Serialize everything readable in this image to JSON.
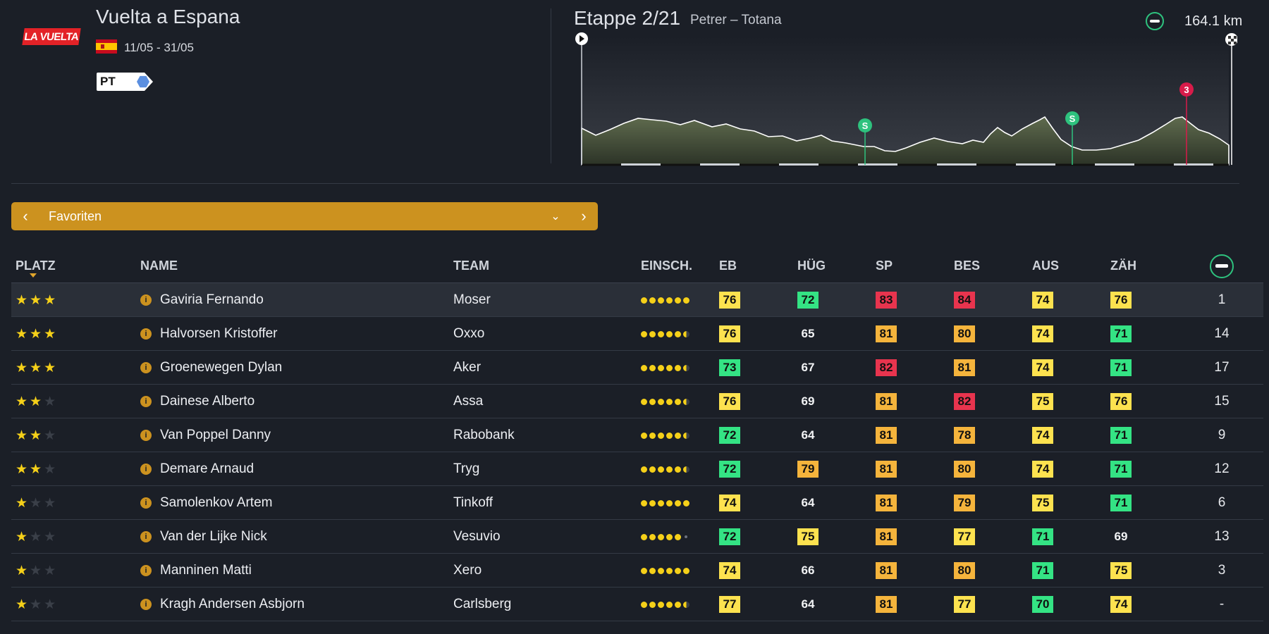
{
  "race": {
    "logo_text": "LA VUELTA",
    "title": "Vuelta a Espana",
    "dates": "11/05 - 31/05",
    "badge": "PT"
  },
  "stage": {
    "title": "Etappe 2/21",
    "route": "Petrer – Totana",
    "distance": "164.1 km",
    "markers": [
      {
        "label": "S",
        "color": "#2ec27e"
      },
      {
        "label": "S",
        "color": "#2ec27e"
      },
      {
        "label": "3",
        "color": "#d81b4a"
      }
    ]
  },
  "selector": {
    "label": "Favoriten"
  },
  "table": {
    "headers": {
      "platz": "PLATZ",
      "name": "NAME",
      "team": "TEAM",
      "einsch": "EINSCH.",
      "eb": "EB",
      "hug": "HÜG",
      "sp": "SP",
      "bes": "BES",
      "aus": "AUS",
      "zah": "ZÄH"
    },
    "colors": {
      "yellow": "#fde24f",
      "green": "#34e384",
      "orange": "#f5b43c",
      "red": "#e8344e"
    },
    "rows": [
      {
        "stars": 3,
        "name": "Gaviria Fernando",
        "team": "Moser",
        "form": "full",
        "eb": "76",
        "hug": "72",
        "sp": "83",
        "bes": "84",
        "aus": "74",
        "zah": "76",
        "rank": "1",
        "c": {
          "eb": "yellow",
          "hug": "green",
          "sp": "red",
          "bes": "red",
          "aus": "yellow",
          "zah": "yellow"
        }
      },
      {
        "stars": 3,
        "name": "Halvorsen Kristoffer",
        "team": "Oxxo",
        "form": "half",
        "eb": "76",
        "hug": "65",
        "sp": "81",
        "bes": "80",
        "aus": "74",
        "zah": "71",
        "rank": "14",
        "c": {
          "eb": "yellow",
          "hug": "plain",
          "sp": "orange",
          "bes": "orange",
          "aus": "yellow",
          "zah": "green"
        }
      },
      {
        "stars": 3,
        "name": "Groenewegen Dylan",
        "team": "Aker",
        "form": "half",
        "eb": "73",
        "hug": "67",
        "sp": "82",
        "bes": "81",
        "aus": "74",
        "zah": "71",
        "rank": "17",
        "c": {
          "eb": "green",
          "hug": "plain",
          "sp": "red",
          "bes": "orange",
          "aus": "yellow",
          "zah": "green"
        }
      },
      {
        "stars": 2,
        "name": "Dainese Alberto",
        "team": "Assa",
        "form": "half",
        "eb": "76",
        "hug": "69",
        "sp": "81",
        "bes": "82",
        "aus": "75",
        "zah": "76",
        "rank": "15",
        "c": {
          "eb": "yellow",
          "hug": "plain",
          "sp": "orange",
          "bes": "red",
          "aus": "yellow",
          "zah": "yellow"
        }
      },
      {
        "stars": 2,
        "name": "Van Poppel Danny",
        "team": "Rabobank",
        "form": "half",
        "eb": "72",
        "hug": "64",
        "sp": "81",
        "bes": "78",
        "aus": "74",
        "zah": "71",
        "rank": "9",
        "c": {
          "eb": "green",
          "hug": "plain",
          "sp": "orange",
          "bes": "orange",
          "aus": "yellow",
          "zah": "green"
        }
      },
      {
        "stars": 2,
        "name": "Demare Arnaud",
        "team": "Tryg",
        "form": "half",
        "eb": "72",
        "hug": "79",
        "sp": "81",
        "bes": "80",
        "aus": "74",
        "zah": "71",
        "rank": "12",
        "c": {
          "eb": "green",
          "hug": "orange",
          "sp": "orange",
          "bes": "orange",
          "aus": "yellow",
          "zah": "green"
        }
      },
      {
        "stars": 1,
        "name": "Samolenkov Artem",
        "team": "Tinkoff",
        "form": "full",
        "eb": "74",
        "hug": "64",
        "sp": "81",
        "bes": "79",
        "aus": "75",
        "zah": "71",
        "rank": "6",
        "c": {
          "eb": "yellow",
          "hug": "plain",
          "sp": "orange",
          "bes": "orange",
          "aus": "yellow",
          "zah": "green"
        }
      },
      {
        "stars": 1,
        "name": "Van der Lijke Nick",
        "team": "Vesuvio",
        "form": "small",
        "eb": "72",
        "hug": "75",
        "sp": "81",
        "bes": "77",
        "aus": "71",
        "zah": "69",
        "rank": "13",
        "c": {
          "eb": "green",
          "hug": "yellow",
          "sp": "orange",
          "bes": "yellow",
          "aus": "green",
          "zah": "plain"
        }
      },
      {
        "stars": 1,
        "name": "Manninen Matti",
        "team": "Xero",
        "form": "full",
        "eb": "74",
        "hug": "66",
        "sp": "81",
        "bes": "80",
        "aus": "71",
        "zah": "75",
        "rank": "3",
        "c": {
          "eb": "yellow",
          "hug": "plain",
          "sp": "orange",
          "bes": "orange",
          "aus": "green",
          "zah": "yellow"
        }
      },
      {
        "stars": 1,
        "name": "Kragh Andersen Asbjorn",
        "team": "Carlsberg",
        "form": "half",
        "eb": "77",
        "hug": "64",
        "sp": "81",
        "bes": "77",
        "aus": "70",
        "zah": "74",
        "rank": "-",
        "c": {
          "eb": "yellow",
          "hug": "plain",
          "sp": "orange",
          "bes": "yellow",
          "aus": "green",
          "zah": "yellow"
        }
      }
    ]
  }
}
